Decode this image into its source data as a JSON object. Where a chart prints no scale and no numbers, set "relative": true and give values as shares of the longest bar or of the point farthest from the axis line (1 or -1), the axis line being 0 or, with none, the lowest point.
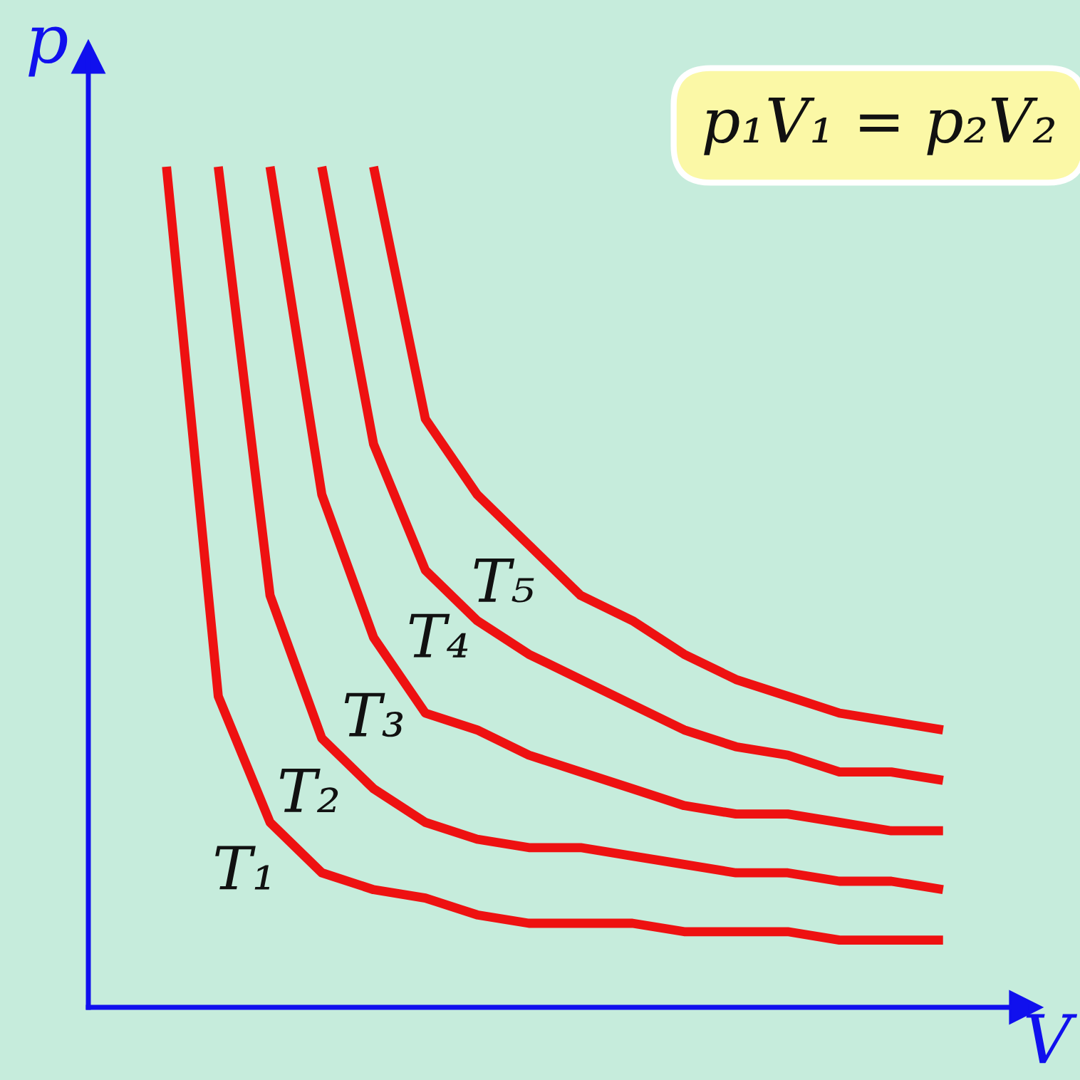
{
  "chart_data": {
    "type": "line",
    "relative": true,
    "xlabel": "V",
    "ylabel": "p",
    "annotations": [
      "p₁V₁ = p₂V₂"
    ],
    "categories": [
      null,
      null,
      null,
      null,
      null,
      null,
      null,
      null,
      null,
      null,
      null,
      null,
      null,
      null,
      null,
      null
    ],
    "legend": false,
    "marker": "none",
    "line_style": "solid",
    "series": [
      {
        "name": "T₁",
        "color": "#ee1111",
        "values": [
          1.0,
          0.37,
          0.22,
          0.16,
          0.14,
          0.13,
          0.11,
          0.1,
          0.1,
          0.1,
          0.09,
          0.09,
          0.09,
          0.08,
          0.08,
          0.08
        ]
      },
      {
        "name": "T₂",
        "color": "#ee1111",
        "values": [
          null,
          1.0,
          0.49,
          0.32,
          0.26,
          0.22,
          0.2,
          0.19,
          0.19,
          0.18,
          0.17,
          0.16,
          0.16,
          0.15,
          0.15,
          0.14
        ]
      },
      {
        "name": "T₃",
        "color": "#ee1111",
        "values": [
          null,
          null,
          1.0,
          0.61,
          0.44,
          0.35,
          0.33,
          0.3,
          0.28,
          0.26,
          0.24,
          0.23,
          0.23,
          0.22,
          0.21,
          0.21
        ]
      },
      {
        "name": "T₄",
        "color": "#ee1111",
        "values": [
          null,
          null,
          null,
          1.0,
          0.67,
          0.52,
          0.46,
          0.42,
          0.39,
          0.36,
          0.33,
          0.31,
          0.3,
          0.28,
          0.28,
          0.27
        ]
      },
      {
        "name": "T₅",
        "color": "#ee1111",
        "values": [
          null,
          null,
          null,
          null,
          1.0,
          0.7,
          0.61,
          0.55,
          0.49,
          0.46,
          0.42,
          0.39,
          0.37,
          0.35,
          0.34,
          0.33
        ]
      }
    ]
  }
}
